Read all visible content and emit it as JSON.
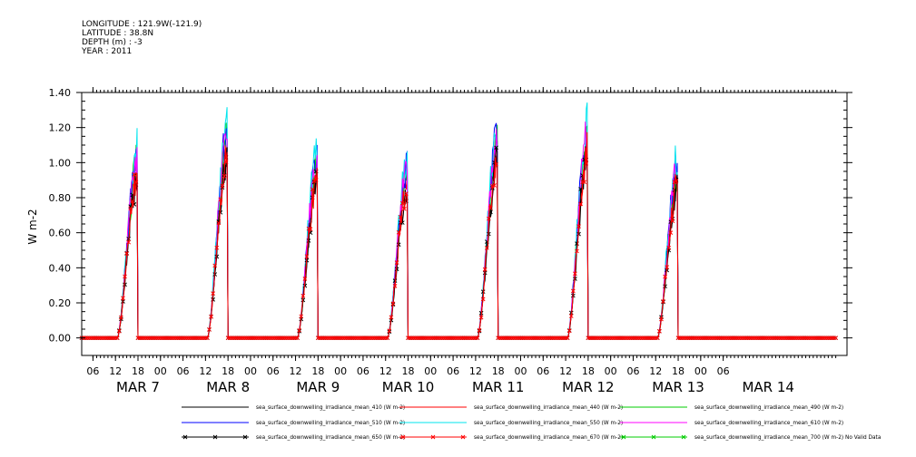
{
  "header": {
    "longitude": "LONGITUDE : 121.9W(-121.9)",
    "latitude": "LATITUDE : 38.8N",
    "depth": "DEPTH (m) : -3",
    "year": "YEAR : 2011"
  },
  "chart_data": {
    "type": "line",
    "ylabel": "W m-2",
    "ylim": [
      -0.1,
      1.4
    ],
    "yticks": [
      "0.00",
      "0.20",
      "0.40",
      "0.60",
      "0.80",
      "1.00",
      "1.20",
      "1.40"
    ],
    "xlim_hours": [
      -3,
      201
    ],
    "hour_labels": [
      "06",
      "12",
      "18",
      "00",
      "06",
      "12",
      "18",
      "00",
      "06",
      "12",
      "18",
      "00",
      "06",
      "12",
      "18",
      "00",
      "06",
      "12",
      "18",
      "00",
      "06",
      "12",
      "18",
      "00",
      "06",
      "12",
      "18",
      "00",
      "06"
    ],
    "day_labels": [
      "MAR  7",
      "MAR  8",
      "MAR  9",
      "MAR 10",
      "MAR 11",
      "MAR 12",
      "MAR 13",
      "MAR 14"
    ],
    "day_peaks_mean_410": [
      0.93,
      1.05,
      0.92,
      0.88,
      1.03,
      1.05,
      0.88
    ],
    "series": [
      {
        "name": "sea_surface_downwelling_irradiance_mean_410 (W m-2)",
        "color": "#000000",
        "marker": "none",
        "scale": 1.0
      },
      {
        "name": "sea_surface_downwelling_irradiance_mean_440 (W m-2)",
        "color": "#ff0000",
        "marker": "none",
        "scale": 1.05
      },
      {
        "name": "sea_surface_downwelling_irradiance_mean_490 (W m-2)",
        "color": "#00cc00",
        "marker": "none",
        "scale": 1.1
      },
      {
        "name": "sea_surface_downwelling_irradiance_mean_510 (W m-2)",
        "color": "#0000ff",
        "marker": "none",
        "scale": 1.15
      },
      {
        "name": "sea_surface_downwelling_irradiance_mean_550 (W m-2)",
        "color": "#00e5ee",
        "marker": "none",
        "scale": 1.2
      },
      {
        "name": "sea_surface_downwelling_irradiance_mean_610 (W m-2)",
        "color": "#ff00ff",
        "marker": "none",
        "scale": 1.12
      },
      {
        "name": "sea_surface_downwelling_irradiance_mean_650 (W m-2)",
        "color": "#000000",
        "marker": "x",
        "scale": 1.0
      },
      {
        "name": "sea_surface_downwelling_irradiance_mean_670 (W m-2)",
        "color": "#ff0000",
        "marker": "x",
        "scale": 1.02
      },
      {
        "name": "sea_surface_downwelling_irradiance_mean_700 (W m-2) No Valid Data",
        "color": "#00cc00",
        "marker": "x",
        "scale": 0
      }
    ],
    "grid": false,
    "legend": "bottom"
  }
}
